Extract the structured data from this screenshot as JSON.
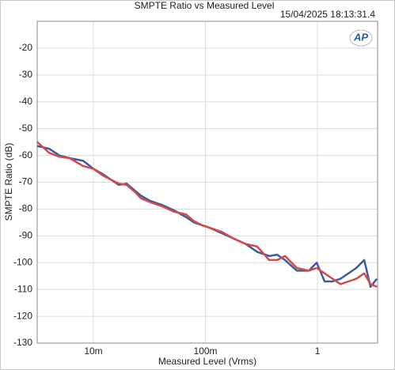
{
  "chart_data": {
    "type": "line",
    "title": "SMPTE Ratio vs Measured Level",
    "timestamp": "15/04/2025 18:13:31.4",
    "logo": "AP",
    "x_label": "Measured Level (Vrms)",
    "y_label": "SMPTE Ratio (dB)",
    "x_log": true,
    "grid": true,
    "xlim": [
      0.00315,
      3.44
    ],
    "ylim": [
      -130,
      -10
    ],
    "xticks": [
      {
        "value": 0.01,
        "label": "10m"
      },
      {
        "value": 0.1,
        "label": "100m"
      },
      1
    ],
    "yticks": [
      -130,
      -120,
      -110,
      -100,
      -90,
      -80,
      -70,
      -60,
      -50,
      -40,
      -30,
      -20
    ],
    "x": [
      0.00315,
      0.00402,
      0.00497,
      0.00614,
      0.0081,
      0.01,
      0.01216,
      0.0143,
      0.01682,
      0.01981,
      0.0233,
      0.02653,
      0.03228,
      0.0412,
      0.0526,
      0.06713,
      0.079,
      0.0929,
      0.1094,
      0.1396,
      0.1782,
      0.2275,
      0.2904,
      0.3707,
      0.4365,
      0.513,
      0.655,
      0.836,
      0.984,
      1.158,
      1.362,
      1.603,
      1.888,
      2.219,
      2.612,
      2.974,
      3.388
    ],
    "series": [
      {
        "color": "#3d5c9c",
        "values": [
          -56.5,
          -57.5,
          -60,
          -61,
          -62,
          -65,
          -67,
          -69,
          -71,
          -70.5,
          -73,
          -75,
          -77,
          -78.5,
          -80.5,
          -83,
          -85,
          -86,
          -87,
          -89,
          -91,
          -93,
          -96,
          -97.5,
          -97,
          -99,
          -103,
          -103,
          -100,
          -107,
          -107,
          -106,
          -104,
          -102,
          -99,
          -109,
          -106
        ]
      },
      {
        "color": "#d24a4a",
        "values": [
          -55,
          -59,
          -60.5,
          -61,
          -64,
          -65,
          -67.5,
          -69,
          -70.5,
          -71,
          -73.5,
          -76,
          -77.5,
          -79,
          -81,
          -82,
          -84.5,
          -86,
          -87,
          -88.5,
          -91,
          -93,
          -94,
          -99,
          -99,
          -97.5,
          -102,
          -103,
          -102,
          -104,
          -106,
          -108,
          -107,
          -106,
          -104,
          -108,
          -109
        ]
      }
    ]
  }
}
